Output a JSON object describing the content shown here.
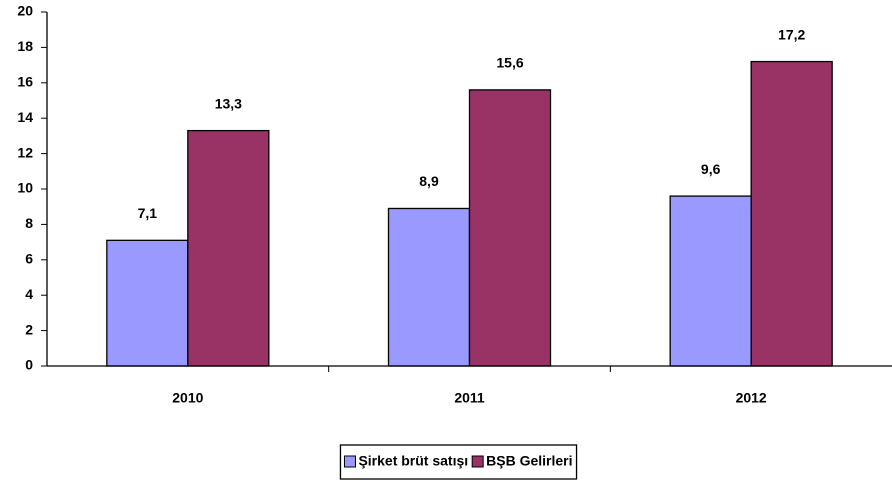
{
  "chart_data": {
    "type": "bar",
    "categories": [
      "2010",
      "2011",
      "2012"
    ],
    "series": [
      {
        "name": "Şirket brüt satışı",
        "color": "#9999ff",
        "values": [
          7.1,
          8.9,
          9.6
        ],
        "value_labels": [
          "7,1",
          "8,9",
          "9,6"
        ]
      },
      {
        "name": "BŞB Gelirleri",
        "color": "#993366",
        "values": [
          13.3,
          15.6,
          17.2
        ],
        "value_labels": [
          "13,3",
          "15,6",
          "17,2"
        ]
      }
    ],
    "ylim": [
      0,
      20
    ],
    "yticks": [
      0,
      2,
      4,
      6,
      8,
      10,
      12,
      14,
      16,
      18,
      20
    ],
    "grid": false,
    "legend": "bottom"
  }
}
